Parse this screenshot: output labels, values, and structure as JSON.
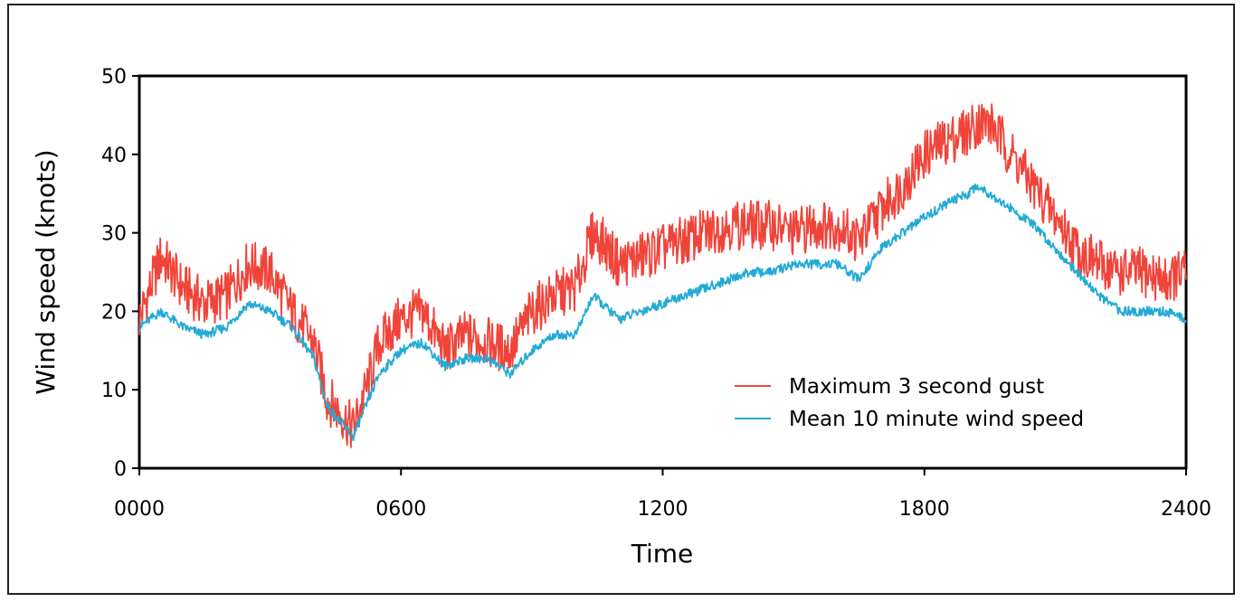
{
  "chart_data": {
    "type": "line",
    "title": "",
    "xlabel": "Time",
    "ylabel": "Wind speed (knots)",
    "x_ticks": [
      "0000",
      "0600",
      "1200",
      "1800",
      "2400"
    ],
    "x_range_hours": [
      0,
      24
    ],
    "y_ticks": [
      "0",
      "10",
      "20",
      "30",
      "40",
      "50"
    ],
    "ylim": [
      0,
      50
    ],
    "grid": false,
    "legend_position": "bottom-right",
    "series": [
      {
        "name": "Maximum 3 second gust",
        "color": "#f0443a",
        "x": [
          0,
          0.5,
          1,
          1.5,
          2,
          2.5,
          3,
          3.5,
          4,
          4.3,
          4.6,
          4.9,
          5.2,
          5.5,
          6,
          6.5,
          7,
          7.5,
          8,
          8.5,
          9,
          9.5,
          10,
          10.4,
          10.6,
          11,
          11.5,
          12,
          12.5,
          13,
          13.5,
          14,
          14.5,
          15,
          15.5,
          16,
          16.5,
          17,
          17.5,
          18,
          18.3,
          18.6,
          19,
          19.2,
          19.5,
          20,
          20.5,
          21,
          21.5,
          22,
          22.5,
          23,
          23.5,
          24
        ],
        "values": [
          19,
          27,
          23,
          21,
          22,
          26,
          25,
          20,
          16,
          9,
          7,
          5,
          10,
          16,
          19,
          20,
          15,
          17,
          16,
          15,
          20,
          22,
          23,
          30,
          29,
          26,
          27,
          28,
          29,
          30,
          31,
          31,
          31,
          30,
          31,
          31,
          29,
          33,
          36,
          40,
          41,
          42,
          43,
          44,
          44,
          40,
          36,
          32,
          28,
          26,
          25,
          25,
          24,
          25
        ]
      },
      {
        "name": "Mean 10 minute wind speed",
        "color": "#22aad4",
        "x": [
          0,
          0.5,
          1,
          1.5,
          2,
          2.5,
          3,
          3.5,
          4,
          4.3,
          4.6,
          4.9,
          5.2,
          5.5,
          6,
          6.5,
          7,
          7.5,
          8,
          8.5,
          9,
          9.5,
          10,
          10.4,
          10.6,
          11,
          11.5,
          12,
          12.5,
          13,
          13.5,
          14,
          14.5,
          15,
          15.5,
          16,
          16.5,
          17,
          17.5,
          18,
          18.3,
          18.6,
          19,
          19.2,
          19.5,
          20,
          20.5,
          21,
          21.5,
          22,
          22.5,
          23,
          23.5,
          24
        ],
        "values": [
          18,
          20,
          18,
          17,
          18,
          21,
          20,
          18,
          14,
          8,
          6,
          4,
          8,
          12,
          15,
          16,
          13,
          14,
          14,
          12,
          15,
          17,
          17,
          22,
          21,
          19,
          20,
          21,
          22,
          23,
          24,
          25,
          25,
          26,
          26,
          26,
          24,
          28,
          30,
          32,
          33,
          34,
          35,
          36,
          35,
          33,
          31,
          28,
          25,
          22,
          20,
          20,
          20,
          19
        ]
      }
    ]
  }
}
